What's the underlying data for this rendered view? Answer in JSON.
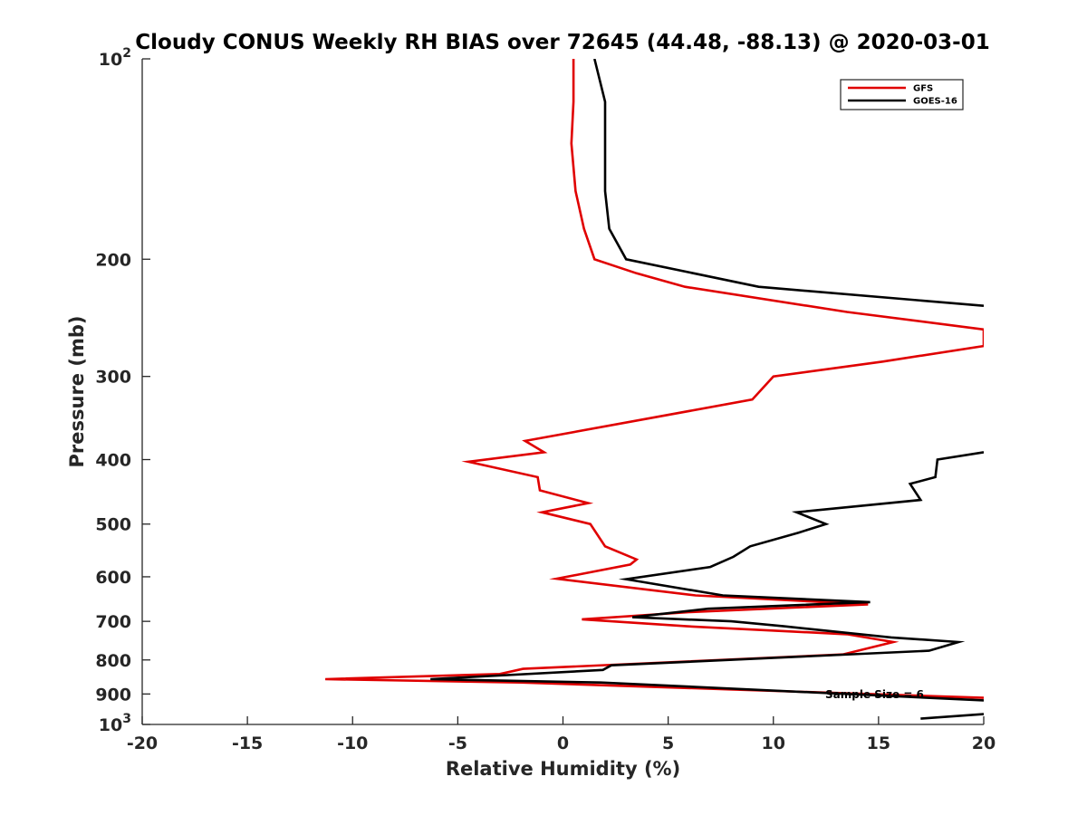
{
  "chart_data": {
    "type": "line",
    "title": "Cloudy CONUS Weekly RH BIAS over 72645 (44.48, -88.13) @ 2020-03-01",
    "xlabel": "Relative Humidity (%)",
    "ylabel": "Pressure (mb)",
    "xlim": [
      -20,
      20
    ],
    "ylim": [
      100,
      1000
    ],
    "y_scale": "log",
    "y_reversed": true,
    "grid": false,
    "legend_position": "top-right",
    "x_ticks": [
      "-20",
      "-15",
      "-10",
      "-5",
      "0",
      "5",
      "10",
      "15",
      "20"
    ],
    "y_ticks": [
      {
        "value": 100,
        "base": "10",
        "exp": "2"
      },
      {
        "value": 200,
        "label": "200"
      },
      {
        "value": 300,
        "label": "300"
      },
      {
        "value": 400,
        "label": "400"
      },
      {
        "value": 500,
        "label": "500"
      },
      {
        "value": 600,
        "label": "600"
      },
      {
        "value": 700,
        "label": "700"
      },
      {
        "value": 800,
        "label": "800"
      },
      {
        "value": 900,
        "label": "900"
      },
      {
        "value": 1000,
        "base": "10",
        "exp": "3"
      }
    ],
    "annotation": "Sample Size = 6",
    "series": [
      {
        "name": "GFS",
        "color": "#e00000",
        "points": [
          [
            0.5,
            100
          ],
          [
            0.5,
            116
          ],
          [
            0.4,
            134
          ],
          [
            0.6,
            158
          ],
          [
            1.0,
            180
          ],
          [
            1.5,
            200
          ],
          [
            3.5,
            210
          ],
          [
            5.8,
            220
          ],
          [
            13.5,
            240
          ],
          [
            20,
            255
          ],
          [
            20,
            270
          ],
          [
            15.2,
            285
          ],
          [
            10.0,
            300
          ],
          [
            9.0,
            325
          ],
          [
            -1.8,
            375
          ],
          [
            -0.9,
            390
          ],
          [
            -4.5,
            403
          ],
          [
            -1.2,
            425
          ],
          [
            -1.1,
            445
          ],
          [
            1.2,
            465
          ],
          [
            -1.0,
            480
          ],
          [
            1.3,
            500
          ],
          [
            2.0,
            540
          ],
          [
            3.5,
            565
          ],
          [
            3.2,
            575
          ],
          [
            -0.3,
            604
          ],
          [
            6.3,
            640
          ],
          [
            14.5,
            660
          ],
          [
            6.0,
            678
          ],
          [
            0.9,
            695
          ],
          [
            5.9,
            712
          ],
          [
            13.5,
            732
          ],
          [
            15.7,
            752
          ],
          [
            13.3,
            785
          ],
          [
            -1.9,
            825
          ],
          [
            -3.0,
            840
          ],
          [
            -11.3,
            855
          ],
          [
            -2.0,
            865
          ],
          [
            20,
            912
          ]
        ]
      },
      {
        "name": "GOES-16",
        "color": "#000000",
        "segments": [
          [
            [
              1.5,
              100
            ],
            [
              2.0,
              116
            ],
            [
              2.0,
              158
            ],
            [
              2.2,
              180
            ],
            [
              3.0,
              200
            ],
            [
              9.3,
              220
            ],
            [
              20,
              235
            ]
          ],
          [
            [
              20,
              390
            ],
            [
              17.8,
              400
            ],
            [
              17.7,
              425
            ],
            [
              16.5,
              435
            ],
            [
              17.0,
              460
            ],
            [
              11.1,
              480
            ],
            [
              12.5,
              500
            ],
            [
              11.2,
              515
            ],
            [
              8.9,
              540
            ],
            [
              8.1,
              560
            ],
            [
              7.0,
              580
            ],
            [
              3.0,
              605
            ],
            [
              7.6,
              640
            ],
            [
              14.6,
              655
            ],
            [
              6.9,
              670
            ],
            [
              3.3,
              690
            ],
            [
              8.0,
              700
            ],
            [
              10.5,
              712
            ],
            [
              15.6,
              740
            ],
            [
              18.8,
              752
            ],
            [
              17.4,
              775
            ],
            [
              2.3,
              815
            ],
            [
              1.9,
              828
            ],
            [
              -6.3,
              855
            ],
            [
              1.8,
              865
            ],
            [
              20,
              920
            ]
          ],
          [
            [
              17.0,
              980
            ],
            [
              20,
              965
            ]
          ]
        ]
      }
    ]
  }
}
